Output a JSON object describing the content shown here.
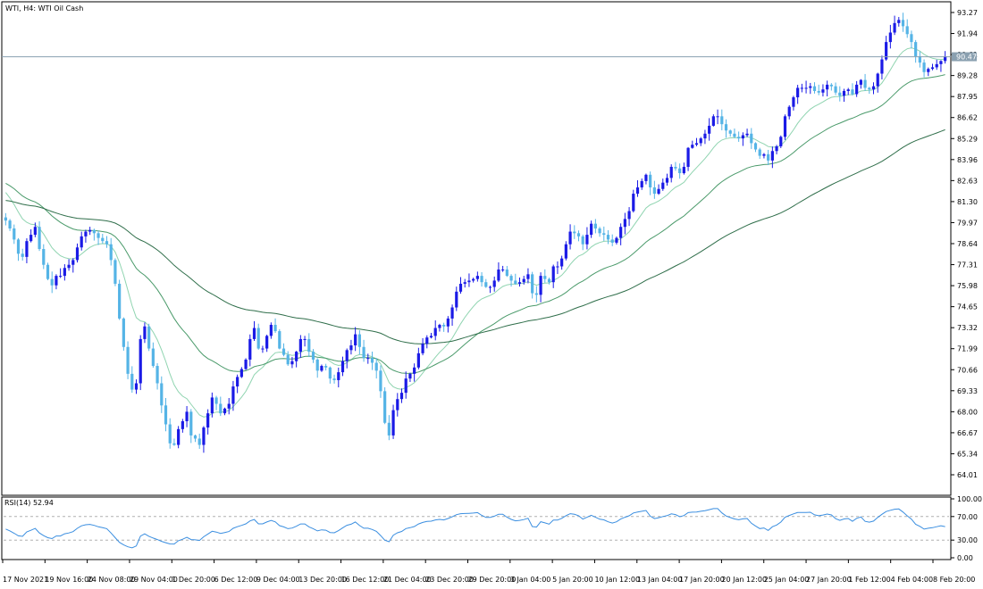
{
  "window": {
    "title": "WTI, H4:  WTI Oil Cash",
    "current_price_label": "90.47",
    "horizontal_line_price": 90.47
  },
  "colors": {
    "bull_candle": "#1a1ae6",
    "bear_candle": "#55b4e6",
    "ma_fast": "#8fd4b0",
    "ma_medium": "#4a9a6a",
    "ma_slow": "#2f6e4a",
    "rsi_line": "#3a8ee0",
    "grid_frame": "#000000",
    "hline": "#8aa0b0",
    "price_tag_bg": "#8aa0b0"
  },
  "chart_data": [
    {
      "type": "candlestick",
      "title": "WTI, H4:  WTI Oil Cash",
      "y_ticks": [
        "93.27",
        "91.94",
        "90.61",
        "89.28",
        "87.95",
        "86.62",
        "85.29",
        "83.96",
        "82.63",
        "81.30",
        "79.97",
        "78.64",
        "77.31",
        "75.98",
        "74.65",
        "73.32",
        "71.99",
        "70.66",
        "69.33",
        "68.00",
        "66.67",
        "65.34",
        "64.01"
      ],
      "ylim": [
        63.0,
        94.2
      ],
      "x_ticks": [
        "17 Nov 2021",
        "19 Nov 16:00",
        "24 Nov 08:00",
        "29 Nov 04:00",
        "1 Dec 20:00",
        "6 Dec 12:00",
        "9 Dec 04:00",
        "13 Dec 20:00",
        "16 Dec 12:00",
        "21 Dec 04:00",
        "23 Dec 20:00",
        "29 Dec 20:00",
        "3 Jan 04:00",
        "5 Jan 20:00",
        "10 Jan 12:00",
        "13 Jan 04:00",
        "17 Jan 20:00",
        "20 Jan 12:00",
        "25 Jan 04:00",
        "27 Jan 20:00",
        "1 Feb 12:00",
        "4 Feb 04:00",
        "8 Feb 20:00"
      ],
      "closes": [
        80.1,
        79.6,
        78.9,
        78.0,
        77.8,
        78.8,
        79.2,
        79.7,
        78.3,
        77.3,
        76.4,
        76.0,
        76.6,
        76.6,
        77.1,
        77.3,
        77.6,
        78.4,
        79.1,
        79.4,
        79.5,
        79.3,
        79.0,
        78.8,
        78.6,
        77.6,
        76.1,
        73.9,
        72.1,
        70.4,
        69.4,
        69.8,
        72.6,
        73.4,
        72.0,
        70.9,
        69.8,
        68.4,
        67.2,
        66.0,
        65.9,
        66.9,
        67.4,
        68.0,
        66.5,
        66.3,
        65.9,
        67.0,
        67.9,
        68.9,
        68.5,
        67.9,
        68.2,
        68.5,
        69.6,
        70.2,
        70.7,
        71.3,
        72.6,
        73.3,
        72.0,
        72.0,
        72.8,
        73.5,
        73.1,
        72.0,
        71.6,
        71.0,
        71.2,
        71.8,
        72.6,
        72.6,
        71.8,
        71.3,
        70.6,
        70.9,
        70.8,
        70.1,
        70.0,
        70.5,
        71.2,
        71.9,
        72.2,
        72.9,
        72.1,
        71.4,
        71.4,
        71.1,
        70.6,
        69.3,
        67.3,
        66.5,
        68.1,
        68.8,
        69.2,
        70.1,
        70.4,
        70.8,
        71.7,
        72.3,
        72.7,
        72.8,
        73.3,
        73.5,
        73.4,
        73.9,
        74.6,
        75.6,
        76.1,
        76.2,
        76.3,
        76.4,
        76.6,
        76.2,
        75.9,
        75.9,
        76.3,
        77.0,
        77.0,
        76.6,
        76.3,
        76.1,
        76.2,
        76.4,
        76.7,
        75.5,
        75.4,
        76.6,
        76.4,
        76.2,
        77.2,
        77.2,
        77.7,
        78.6,
        79.4,
        79.3,
        79.1,
        78.6,
        79.2,
        79.9,
        79.6,
        79.3,
        79.2,
        78.9,
        78.7,
        79.0,
        79.7,
        80.2,
        80.7,
        81.8,
        82.2,
        82.6,
        83.0,
        82.2,
        81.8,
        82.1,
        82.5,
        82.8,
        83.5,
        83.4,
        83.1,
        83.5,
        84.7,
        84.9,
        85.0,
        85.3,
        85.6,
        86.1,
        86.7,
        86.7,
        86.2,
        85.8,
        85.6,
        85.4,
        85.3,
        85.5,
        85.6,
        85.0,
        84.6,
        84.2,
        84.3,
        83.9,
        84.5,
        84.8,
        85.4,
        86.7,
        87.3,
        87.9,
        88.5,
        88.5,
        88.5,
        88.6,
        88.3,
        88.2,
        88.4,
        88.7,
        88.6,
        88.2,
        88.0,
        88.3,
        88.4,
        88.1,
        88.7,
        89.0,
        88.5,
        88.4,
        88.6,
        89.4,
        90.3,
        91.4,
        92.0,
        92.6,
        92.8,
        92.4,
        91.9,
        91.4,
        90.5,
        90.1,
        89.5,
        89.7,
        89.8,
        90.0,
        90.2,
        90.5
      ],
      "moving_averages": [
        "fast",
        "medium",
        "slow"
      ]
    },
    {
      "type": "line",
      "title": "RSI(14) 52.94",
      "indicator": "RSI(14)",
      "last_value": 52.94,
      "y_ticks": [
        "100.00",
        "70.00",
        "30.00",
        "0.00"
      ],
      "levels": [
        70,
        30
      ],
      "ylim": [
        0,
        100
      ]
    }
  ]
}
